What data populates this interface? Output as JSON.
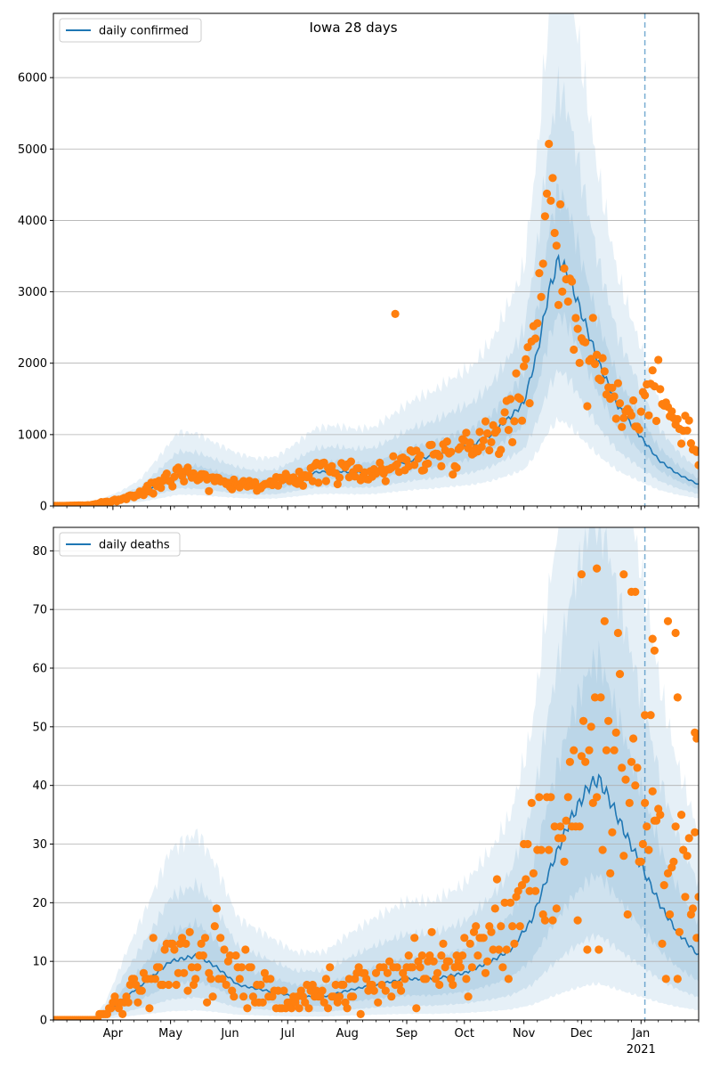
{
  "chart_data": {
    "type": "line",
    "title": "Iowa 28 days",
    "x_type": "date",
    "xlim": [
      "2020-03-01",
      "2021-01-31"
    ],
    "x_tick_labels": [
      {
        "date": "2020-04-01",
        "label": "Apr"
      },
      {
        "date": "2020-05-01",
        "label": "May"
      },
      {
        "date": "2020-06-01",
        "label": "Jun"
      },
      {
        "date": "2020-07-01",
        "label": "Jul"
      },
      {
        "date": "2020-08-01",
        "label": "Aug"
      },
      {
        "date": "2020-09-01",
        "label": "Sep"
      },
      {
        "date": "2020-10-01",
        "label": "Oct"
      },
      {
        "date": "2020-11-01",
        "label": "Nov"
      },
      {
        "date": "2020-12-01",
        "label": "Dec"
      },
      {
        "date": "2021-01-01",
        "label": "Jan"
      }
    ],
    "year_label": "2021",
    "vline_date": "2021-01-03",
    "grid": "horizontal",
    "legend_placement": "top-left",
    "colors": {
      "model_line": "#1f77b4",
      "band": "#1f77b4",
      "observed": "#ff7f0e",
      "vline": "#1f77b4"
    },
    "panels": [
      {
        "id": "cases",
        "legend_label": "daily confirmed",
        "ylim": [
          0,
          6900
        ],
        "yticks": [
          0,
          1000,
          2000,
          3000,
          4000,
          5000,
          6000
        ],
        "model_keypoints": [
          [
            "2020-03-01",
            0
          ],
          [
            "2020-03-15",
            5
          ],
          [
            "2020-03-25",
            40
          ],
          [
            "2020-04-05",
            90
          ],
          [
            "2020-04-15",
            160
          ],
          [
            "2020-04-25",
            300
          ],
          [
            "2020-05-05",
            450
          ],
          [
            "2020-05-15",
            440
          ],
          [
            "2020-05-25",
            380
          ],
          [
            "2020-06-05",
            320
          ],
          [
            "2020-06-15",
            290
          ],
          [
            "2020-06-25",
            300
          ],
          [
            "2020-07-05",
            380
          ],
          [
            "2020-07-15",
            470
          ],
          [
            "2020-07-25",
            490
          ],
          [
            "2020-08-05",
            470
          ],
          [
            "2020-08-15",
            480
          ],
          [
            "2020-08-25",
            560
          ],
          [
            "2020-09-05",
            650
          ],
          [
            "2020-09-15",
            700
          ],
          [
            "2020-09-25",
            780
          ],
          [
            "2020-10-05",
            850
          ],
          [
            "2020-10-15",
            1000
          ],
          [
            "2020-10-25",
            1250
          ],
          [
            "2020-11-01",
            1450
          ],
          [
            "2020-11-08",
            2150
          ],
          [
            "2020-11-14",
            3000
          ],
          [
            "2020-11-19",
            3450
          ],
          [
            "2020-11-24",
            3250
          ],
          [
            "2020-12-01",
            2700
          ],
          [
            "2020-12-10",
            2000
          ],
          [
            "2020-12-20",
            1400
          ],
          [
            "2020-12-31",
            1000
          ],
          [
            "2021-01-10",
            650
          ],
          [
            "2021-01-20",
            450
          ],
          [
            "2021-01-31",
            300
          ]
        ],
        "observed_keypoints": [
          [
            "2020-03-01",
            0
          ],
          [
            "2020-03-20",
            10
          ],
          [
            "2020-04-01",
            70
          ],
          [
            "2020-04-15",
            160
          ],
          [
            "2020-04-25",
            350
          ],
          [
            "2020-05-05",
            500
          ],
          [
            "2020-05-15",
            430
          ],
          [
            "2020-05-25",
            360
          ],
          [
            "2020-06-05",
            320
          ],
          [
            "2020-06-15",
            290
          ],
          [
            "2020-06-25",
            300
          ],
          [
            "2020-07-05",
            400
          ],
          [
            "2020-07-15",
            480
          ],
          [
            "2020-07-25",
            500
          ],
          [
            "2020-08-05",
            460
          ],
          [
            "2020-08-15",
            470
          ],
          [
            "2020-08-25",
            560
          ],
          [
            "2020-09-05",
            650
          ],
          [
            "2020-09-15",
            720
          ],
          [
            "2020-09-25",
            780
          ],
          [
            "2020-10-05",
            880
          ],
          [
            "2020-10-15",
            1050
          ],
          [
            "2020-10-25",
            1250
          ],
          [
            "2020-11-01",
            1600
          ],
          [
            "2020-11-08",
            2800
          ],
          [
            "2020-11-12",
            4500
          ],
          [
            "2020-11-17",
            4300
          ],
          [
            "2020-11-22",
            3300
          ],
          [
            "2020-11-30",
            2400
          ],
          [
            "2020-12-10",
            1800
          ],
          [
            "2020-12-20",
            1450
          ],
          [
            "2020-12-31",
            1300
          ],
          [
            "2021-01-07",
            1800
          ],
          [
            "2021-01-20",
            1100
          ],
          [
            "2021-01-31",
            900
          ]
        ],
        "observed_spread": 0.22,
        "observed_outliers": [
          [
            "2020-08-26",
            2690
          ]
        ],
        "band_factors": [
          [
            0.78,
            1.28
          ],
          [
            0.55,
            1.7
          ],
          [
            0.35,
            2.3
          ]
        ]
      },
      {
        "id": "deaths",
        "legend_label": "daily deaths",
        "ylim": [
          0,
          84
        ],
        "yticks": [
          0,
          10,
          20,
          30,
          40,
          50,
          60,
          70,
          80
        ],
        "model_keypoints": [
          [
            "2020-03-01",
            0
          ],
          [
            "2020-03-20",
            0
          ],
          [
            "2020-03-28",
            1
          ],
          [
            "2020-04-08",
            4
          ],
          [
            "2020-04-20",
            7
          ],
          [
            "2020-05-01",
            10
          ],
          [
            "2020-05-15",
            11
          ],
          [
            "2020-05-25",
            9
          ],
          [
            "2020-06-05",
            6
          ],
          [
            "2020-06-20",
            5
          ],
          [
            "2020-07-05",
            4
          ],
          [
            "2020-07-20",
            4
          ],
          [
            "2020-08-01",
            5
          ],
          [
            "2020-08-15",
            6
          ],
          [
            "2020-09-01",
            7
          ],
          [
            "2020-09-15",
            7
          ],
          [
            "2020-10-01",
            8
          ],
          [
            "2020-10-15",
            10
          ],
          [
            "2020-10-25",
            12
          ],
          [
            "2020-11-05",
            17
          ],
          [
            "2020-11-15",
            26
          ],
          [
            "2020-11-25",
            34
          ],
          [
            "2020-12-05",
            40
          ],
          [
            "2020-12-10",
            41
          ],
          [
            "2020-12-15",
            38
          ],
          [
            "2020-12-25",
            31
          ],
          [
            "2021-01-03",
            25
          ],
          [
            "2021-01-12",
            19
          ],
          [
            "2021-01-20",
            15
          ],
          [
            "2021-01-31",
            11
          ]
        ],
        "observed_keypoints": [
          [
            "2020-03-01",
            0
          ],
          [
            "2020-03-22",
            0
          ],
          [
            "2020-04-01",
            2
          ],
          [
            "2020-04-15",
            6
          ],
          [
            "2020-05-01",
            10
          ],
          [
            "2020-05-15",
            12
          ],
          [
            "2020-05-25",
            11
          ],
          [
            "2020-06-05",
            7
          ],
          [
            "2020-06-20",
            5
          ],
          [
            "2020-07-05",
            3
          ],
          [
            "2020-07-20",
            5
          ],
          [
            "2020-08-01",
            6
          ],
          [
            "2020-08-15",
            7
          ],
          [
            "2020-09-01",
            8
          ],
          [
            "2020-09-15",
            9
          ],
          [
            "2020-10-01",
            10
          ],
          [
            "2020-10-15",
            14
          ],
          [
            "2020-11-01",
            20
          ],
          [
            "2020-11-15",
            30
          ],
          [
            "2020-12-01",
            38
          ],
          [
            "2020-12-10",
            45
          ],
          [
            "2020-12-20",
            45
          ],
          [
            "2021-01-01",
            35
          ],
          [
            "2021-01-15",
            25
          ],
          [
            "2021-01-31",
            22
          ]
        ],
        "observed_spread": 0.45,
        "observed_outliers": [
          [
            "2020-12-01",
            76
          ],
          [
            "2020-12-09",
            77
          ],
          [
            "2020-12-23",
            76
          ],
          [
            "2020-12-27",
            73
          ],
          [
            "2020-12-29",
            73
          ],
          [
            "2021-01-03",
            52
          ],
          [
            "2021-01-07",
            65
          ],
          [
            "2021-01-08",
            63
          ],
          [
            "2021-01-15",
            68
          ],
          [
            "2021-01-19",
            66
          ],
          [
            "2021-01-20",
            55
          ],
          [
            "2021-01-29",
            49
          ],
          [
            "2021-01-30",
            48
          ]
        ],
        "band_factors": [
          [
            0.6,
            1.5
          ],
          [
            0.35,
            2.1
          ],
          [
            0.15,
            2.9
          ]
        ]
      }
    ]
  }
}
